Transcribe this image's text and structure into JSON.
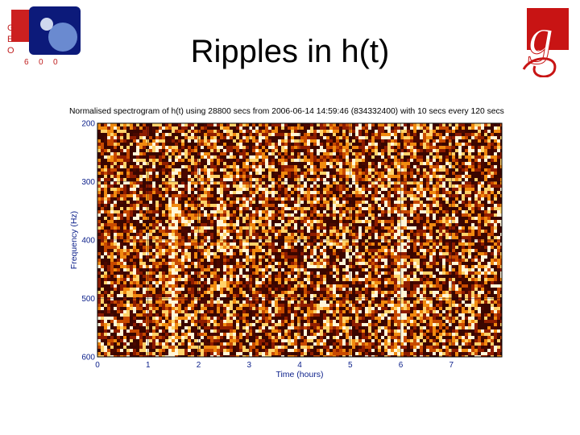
{
  "slide": {
    "title": "Ripples in h(t)"
  },
  "logos": {
    "left_letters": [
      "G",
      "E",
      "O",
      "6",
      "0",
      "0"
    ],
    "right_glyph": "g"
  },
  "chart_data": {
    "type": "heatmap",
    "title": "Normalised spectrogram of h(t) using 28800 secs from 2006-06-14 14:59:46 (834332400) with 10 secs every 120 secs",
    "xlabel": "Time (hours)",
    "ylabel": "Frequency (Hz)",
    "xlim": [
      0,
      8
    ],
    "ylim": [
      200,
      600
    ],
    "y_axis_reversed": true,
    "xticks": [
      0,
      1,
      2,
      3,
      4,
      5,
      6,
      7
    ],
    "yticks": [
      200,
      300,
      400,
      500,
      600
    ],
    "colormap": [
      "#140300",
      "#4a0800",
      "#8f1d00",
      "#c84a00",
      "#f08a10",
      "#ffd26a",
      "#fff6d8"
    ],
    "bright_bands": [
      {
        "time_hours": 1.5,
        "frequency_range": [
          330,
          600
        ]
      },
      {
        "time_hours": 6.0,
        "frequency_range": [
          300,
          600
        ]
      },
      {
        "time_hours": 2.5,
        "frequency_range": [
          340,
          420
        ]
      }
    ],
    "grid": true
  }
}
